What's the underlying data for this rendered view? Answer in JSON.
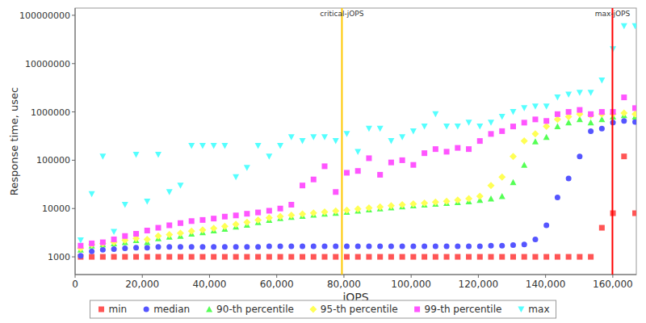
{
  "chart_data": {
    "type": "scatter",
    "x_label": "jOPS",
    "y_label": "Response time, usec",
    "log": "y",
    "grid": false,
    "legend": "bottom",
    "xlim": [
      0,
      167000
    ],
    "ylim": [
      430,
      141000000
    ],
    "xticks": [
      0,
      {
        "value": 20000,
        "label": "20,000"
      },
      {
        "value": 40000,
        "label": "40,000"
      },
      {
        "value": 60000,
        "label": "60,000"
      },
      {
        "value": 80000,
        "label": "80,000"
      },
      {
        "value": 100000,
        "label": "100,000"
      },
      {
        "value": 120000,
        "label": "120,000"
      },
      {
        "value": 140000,
        "label": "140,000"
      },
      {
        "value": 160000,
        "label": "160,000"
      }
    ],
    "yticks": [
      1000,
      10000,
      100000,
      1000000,
      10000000,
      100000000
    ],
    "annotations": [
      {
        "text": "critical-jOPS",
        "x": 79400,
        "color": "#ffc800"
      },
      {
        "text": "max-jOPS",
        "x": 159900,
        "color": "#ff0000"
      }
    ],
    "x": [
      1650,
      4950,
      8250,
      11550,
      14850,
      18150,
      21450,
      24750,
      28050,
      31350,
      34650,
      37950,
      41250,
      44550,
      47850,
      51150,
      54450,
      57750,
      61050,
      64350,
      67650,
      70950,
      74250,
      77550,
      80850,
      84150,
      87450,
      90750,
      94050,
      97350,
      100650,
      103950,
      107250,
      110550,
      113850,
      117150,
      120450,
      123750,
      127050,
      130350,
      133650,
      136950,
      140250,
      143550,
      146850,
      150150,
      153450,
      156750,
      160050,
      163350,
      166650
    ],
    "series": [
      {
        "name": "min",
        "color": "#ff5555",
        "marker": "square",
        "values": [
          1000,
          1000,
          1000,
          1000,
          1000,
          1000,
          1000,
          1000,
          1000,
          1000,
          1000,
          1000,
          1000,
          1000,
          1000,
          1000,
          1000,
          1000,
          1000,
          1000,
          1000,
          1000,
          1000,
          1000,
          1000,
          1000,
          1000,
          1000,
          1000,
          1000,
          1000,
          1000,
          1000,
          1000,
          1000,
          1000,
          1000,
          1000,
          1000,
          1000,
          1000,
          1000,
          1000,
          1000,
          1000,
          1000,
          1000,
          4000,
          8000,
          120000,
          8000
        ]
      },
      {
        "name": "median",
        "color": "#5555ff",
        "marker": "circle",
        "values": [
          1050,
          1300,
          1400,
          1450,
          1500,
          1550,
          1550,
          1600,
          1600,
          1600,
          1600,
          1600,
          1600,
          1600,
          1600,
          1600,
          1600,
          1650,
          1650,
          1650,
          1650,
          1650,
          1650,
          1650,
          1650,
          1650,
          1650,
          1650,
          1650,
          1650,
          1650,
          1650,
          1650,
          1650,
          1650,
          1650,
          1650,
          1700,
          1700,
          1750,
          1800,
          2300,
          4500,
          17000,
          42000,
          120000,
          400000,
          450000,
          600000,
          650000,
          620000
        ]
      },
      {
        "name": "90-th percentile",
        "color": "#55ff55",
        "marker": "triangle",
        "values": [
          1400,
          1700,
          1800,
          1900,
          2000,
          2200,
          2000,
          2400,
          2600,
          2700,
          3000,
          3200,
          3500,
          3800,
          4200,
          4600,
          5200,
          5800,
          6300,
          6700,
          7000,
          7400,
          7800,
          8100,
          8500,
          9000,
          9500,
          10000,
          10500,
          11000,
          11500,
          12000,
          12500,
          13000,
          13500,
          14000,
          15000,
          16000,
          18000,
          35000,
          80000,
          245000,
          300000,
          500000,
          600000,
          700000,
          600000,
          700000,
          800000,
          850000,
          800000
        ]
      },
      {
        "name": "95-th percentile",
        "color": "#ffff55",
        "marker": "diamond",
        "values": [
          1500,
          1800,
          1900,
          2000,
          2200,
          2400,
          2300,
          2700,
          2900,
          3100,
          3400,
          3600,
          3900,
          4300,
          4700,
          5200,
          5800,
          6400,
          6900,
          7300,
          7700,
          8100,
          8500,
          8900,
          9300,
          9800,
          10300,
          10800,
          11400,
          12000,
          12500,
          13000,
          13600,
          14200,
          15000,
          16000,
          18000,
          30000,
          45000,
          120000,
          250000,
          350000,
          500000,
          700000,
          800000,
          900000,
          850000,
          900000,
          900000,
          950000,
          900000
        ]
      },
      {
        "name": "99-th percentile",
        "color": "#ff55ff",
        "marker": "square",
        "values": [
          1700,
          1900,
          2000,
          2300,
          2700,
          3000,
          3500,
          4000,
          4500,
          5000,
          5500,
          5800,
          6200,
          6800,
          7200,
          7800,
          8300,
          9000,
          10000,
          12000,
          30000,
          40000,
          75000,
          22000,
          55000,
          60000,
          110000,
          50000,
          90000,
          100000,
          80000,
          140000,
          170000,
          150000,
          180000,
          170000,
          250000,
          350000,
          400000,
          500000,
          600000,
          700000,
          650000,
          900000,
          1000000,
          1100000,
          900000,
          1000000,
          1000000,
          2000000,
          1200000
        ]
      },
      {
        "name": "max",
        "color": "#55ffff",
        "marker": "triangle-down",
        "values": [
          2200,
          20000,
          120000,
          3300,
          12000,
          130000,
          14000,
          130000,
          22000,
          30000,
          200000,
          200000,
          200000,
          200000,
          45000,
          70000,
          200000,
          120000,
          200000,
          300000,
          250000,
          300000,
          300000,
          250000,
          350000,
          150000,
          450000,
          450000,
          250000,
          300000,
          400000,
          500000,
          900000,
          500000,
          500000,
          600000,
          500000,
          600000,
          800000,
          1000000,
          1200000,
          1300000,
          1300000,
          2000000,
          2300000,
          2500000,
          2500000,
          4500000,
          20000000,
          60000000,
          60000000
        ]
      }
    ]
  }
}
